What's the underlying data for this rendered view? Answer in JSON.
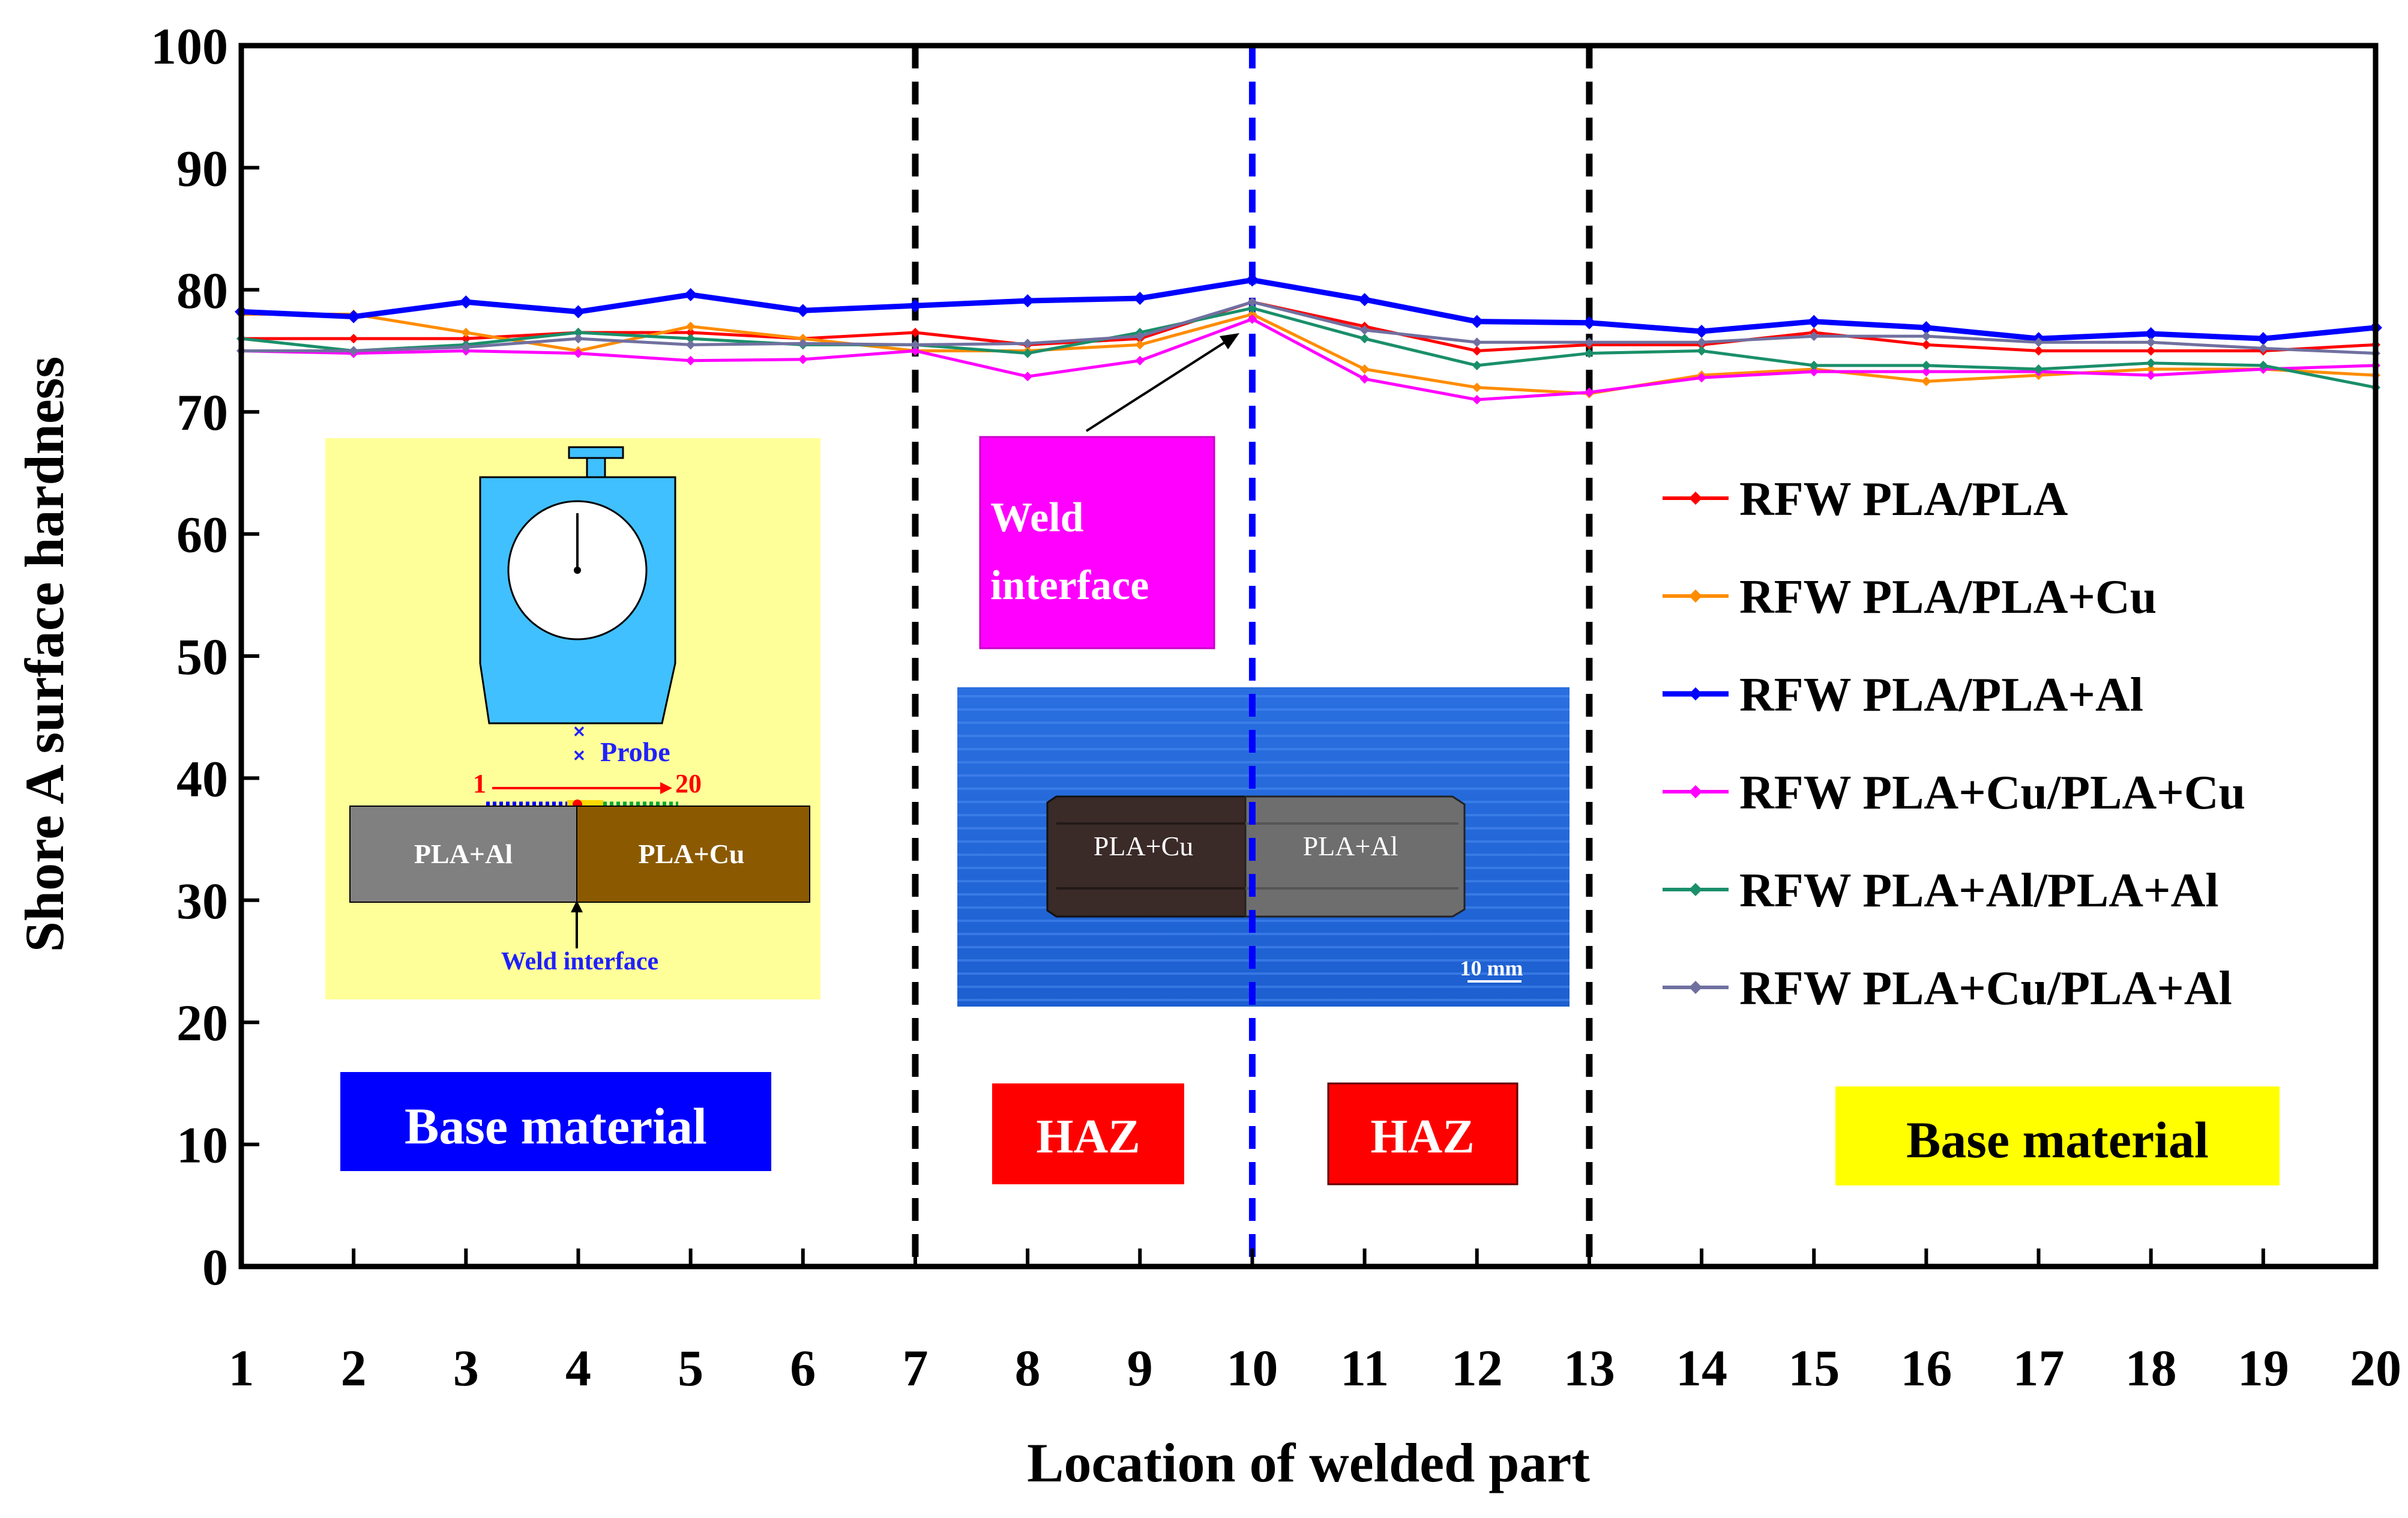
{
  "chart_data": {
    "type": "line",
    "title": "",
    "xlabel": "Location of welded part",
    "ylabel": "Shore  A surface hardness",
    "x": [
      1,
      2,
      3,
      4,
      5,
      6,
      7,
      8,
      9,
      10,
      11,
      12,
      13,
      14,
      15,
      16,
      17,
      18,
      19,
      20
    ],
    "xlim": [
      1,
      20
    ],
    "ylim": [
      0,
      100
    ],
    "yticks": [
      0,
      10,
      20,
      30,
      40,
      50,
      60,
      70,
      80,
      90,
      100
    ],
    "grid": false,
    "legend_position": "right",
    "series": [
      {
        "name": "RFW PLA/PLA",
        "color": "#ff0000",
        "values": [
          76.0,
          76.0,
          76.0,
          76.5,
          76.5,
          76.0,
          76.5,
          75.5,
          76.0,
          79.0,
          77.0,
          75.0,
          75.5,
          75.5,
          76.5,
          75.5,
          75.0,
          75.0,
          75.0,
          75.5
        ]
      },
      {
        "name": "RFW PLA/PLA+Cu",
        "color": "#ff8c00",
        "values": [
          78.0,
          78.0,
          76.5,
          75.0,
          77.0,
          76.0,
          75.0,
          75.0,
          75.5,
          78.0,
          73.5,
          72.0,
          71.5,
          73.0,
          73.5,
          72.5,
          73.0,
          73.5,
          73.5,
          73.0
        ]
      },
      {
        "name": "RFW PLA/PLA+Al",
        "color": "#0000ff",
        "values": [
          78.2,
          77.8,
          79.0,
          78.2,
          79.6,
          78.3,
          78.7,
          79.1,
          79.3,
          80.8,
          79.2,
          77.4,
          77.3,
          76.6,
          77.4,
          76.9,
          76.0,
          76.4,
          76.0,
          76.9
        ]
      },
      {
        "name": "RFW PLA+Cu/PLA+Cu",
        "color": "#ff00ff",
        "values": [
          75.0,
          74.8,
          75.0,
          74.8,
          74.2,
          74.3,
          75.0,
          72.9,
          74.2,
          77.6,
          72.7,
          71.0,
          71.6,
          72.8,
          73.3,
          73.3,
          73.3,
          73.0,
          73.5,
          73.8
        ]
      },
      {
        "name": "RFW PLA+Al/PLA+Al",
        "color": "#1a8f6a",
        "values": [
          76.0,
          75.0,
          75.5,
          76.5,
          76.0,
          75.5,
          75.5,
          74.8,
          76.5,
          78.5,
          76.0,
          73.8,
          74.8,
          75.0,
          73.8,
          73.8,
          73.5,
          74.0,
          73.8,
          72.0
        ]
      },
      {
        "name": "RFW PLA+Cu/PLA+Al",
        "color": "#7070a0",
        "values": [
          75.0,
          75.0,
          75.3,
          76.0,
          75.5,
          75.6,
          75.5,
          75.6,
          76.2,
          79.0,
          76.7,
          75.7,
          75.7,
          75.7,
          76.2,
          76.2,
          75.7,
          75.7,
          75.2,
          74.8
        ]
      }
    ],
    "reference_lines": [
      {
        "x": 7,
        "color": "#000000",
        "style": "dashed"
      },
      {
        "x": 10,
        "color": "#0000ff",
        "style": "dashed"
      },
      {
        "x": 13,
        "color": "#000000",
        "style": "dashed"
      }
    ],
    "annotations": {
      "base_left": {
        "text": "Base material",
        "bg": "#0000ff",
        "fg": "#ffffff"
      },
      "haz_left": {
        "text": "HAZ",
        "bg": "#ff0000",
        "fg": "#ffffff"
      },
      "haz_right": {
        "text": "HAZ",
        "bg": "#ff0000",
        "fg": "#ffffff"
      },
      "base_right": {
        "text": "Base material",
        "bg": "#ffff00",
        "fg": "#000000"
      },
      "weld_interface": {
        "line1": "Weld",
        "line2": "interface",
        "bg": "#ff00ff",
        "fg": "#ffffff"
      }
    },
    "inset_schematic": {
      "probe_label": "Probe",
      "point_start": "1",
      "point_end": "20",
      "left_material": "PLA+Al",
      "right_material": "PLA+Cu",
      "weld_label": "Weld interface"
    },
    "inset_photo": {
      "left_material": "PLA+Cu",
      "right_material": "PLA+Al",
      "scale_label": "10 mm"
    }
  }
}
